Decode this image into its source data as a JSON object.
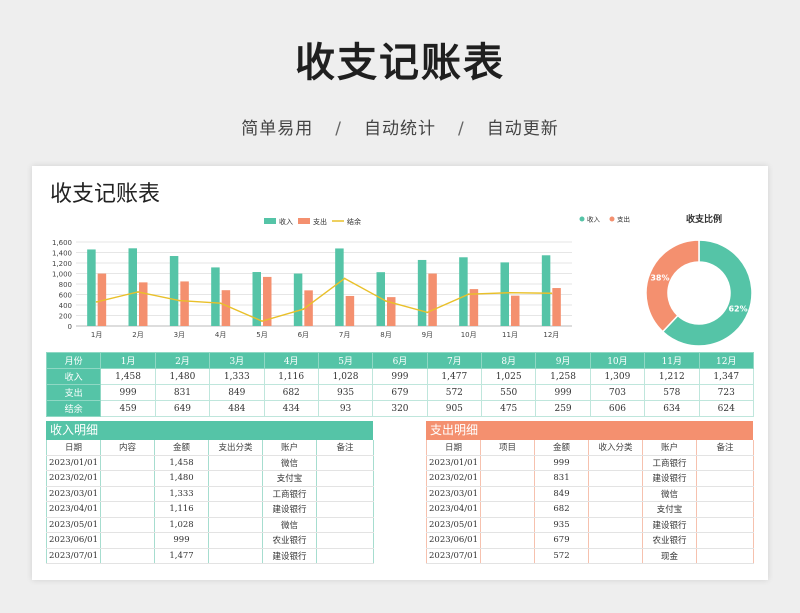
{
  "hero": {
    "title": "收支记账表",
    "features": [
      "简单易用",
      "自动统计",
      "自动更新"
    ],
    "separator": "/"
  },
  "sheet": {
    "title": "收支记账表"
  },
  "colors": {
    "income": "#55c4a7",
    "expense": "#f4906f",
    "balance": "#e9c02a"
  },
  "chart_data": [
    {
      "type": "bar",
      "categories": [
        "1月",
        "2月",
        "3月",
        "4月",
        "5月",
        "6月",
        "7月",
        "8月",
        "9月",
        "10月",
        "11月",
        "12月"
      ],
      "series": [
        {
          "name": "收入",
          "type": "bar",
          "values": [
            1458,
            1480,
            1333,
            1116,
            1028,
            999,
            1477,
            1025,
            1258,
            1309,
            1212,
            1347
          ]
        },
        {
          "name": "支出",
          "type": "bar",
          "values": [
            999,
            831,
            849,
            682,
            935,
            679,
            572,
            550,
            999,
            703,
            578,
            723
          ]
        },
        {
          "name": "结余",
          "type": "line",
          "values": [
            459,
            649,
            484,
            434,
            93,
            320,
            905,
            475,
            259,
            606,
            634,
            624
          ]
        }
      ],
      "yticks": [
        "0",
        "200",
        "400",
        "600",
        "800",
        "1,000",
        "1,200",
        "1,400",
        "1,600"
      ],
      "ylim": [
        0,
        1600
      ],
      "legend": "top-center",
      "grid": true
    },
    {
      "type": "pie",
      "title": "收支比例",
      "labels": [
        "收入",
        "支出"
      ],
      "values": [
        62,
        38
      ],
      "display": [
        "62%",
        "38%"
      ],
      "legend": "top-left",
      "donut": true
    }
  ],
  "summary": {
    "header": [
      "月份",
      "1月",
      "2月",
      "3月",
      "4月",
      "5月",
      "6月",
      "7月",
      "8月",
      "9月",
      "10月",
      "11月",
      "12月"
    ],
    "rows": [
      [
        "收入",
        "1,458",
        "1,480",
        "1,333",
        "1,116",
        "1,028",
        "999",
        "1,477",
        "1,025",
        "1,258",
        "1,309",
        "1,212",
        "1,347"
      ],
      [
        "支出",
        "999",
        "831",
        "849",
        "682",
        "935",
        "679",
        "572",
        "550",
        "999",
        "703",
        "578",
        "723"
      ],
      [
        "结余",
        "459",
        "649",
        "484",
        "434",
        "93",
        "320",
        "905",
        "475",
        "259",
        "606",
        "634",
        "624"
      ]
    ]
  },
  "income_detail": {
    "title": "收入明细",
    "columns": [
      "日期",
      "内容",
      "金额",
      "支出分类",
      "账户",
      "备注"
    ],
    "rows": [
      [
        "2023/01/01",
        "",
        "1,458",
        "",
        "微信",
        ""
      ],
      [
        "2023/02/01",
        "",
        "1,480",
        "",
        "支付宝",
        ""
      ],
      [
        "2023/03/01",
        "",
        "1,333",
        "",
        "工商银行",
        ""
      ],
      [
        "2023/04/01",
        "",
        "1,116",
        "",
        "建设银行",
        ""
      ],
      [
        "2023/05/01",
        "",
        "1,028",
        "",
        "微信",
        ""
      ],
      [
        "2023/06/01",
        "",
        "999",
        "",
        "农业银行",
        ""
      ],
      [
        "2023/07/01",
        "",
        "1,477",
        "",
        "建设银行",
        ""
      ]
    ]
  },
  "expense_detail": {
    "title": "支出明细",
    "columns": [
      "日期",
      "项目",
      "金额",
      "收入分类",
      "账户",
      "备注"
    ],
    "rows": [
      [
        "2023/01/01",
        "",
        "999",
        "",
        "工商银行",
        ""
      ],
      [
        "2023/02/01",
        "",
        "831",
        "",
        "建设银行",
        ""
      ],
      [
        "2023/03/01",
        "",
        "849",
        "",
        "微信",
        ""
      ],
      [
        "2023/04/01",
        "",
        "682",
        "",
        "支付宝",
        ""
      ],
      [
        "2023/05/01",
        "",
        "935",
        "",
        "建设银行",
        ""
      ],
      [
        "2023/06/01",
        "",
        "679",
        "",
        "农业银行",
        ""
      ],
      [
        "2023/07/01",
        "",
        "572",
        "",
        "现金",
        ""
      ]
    ]
  }
}
